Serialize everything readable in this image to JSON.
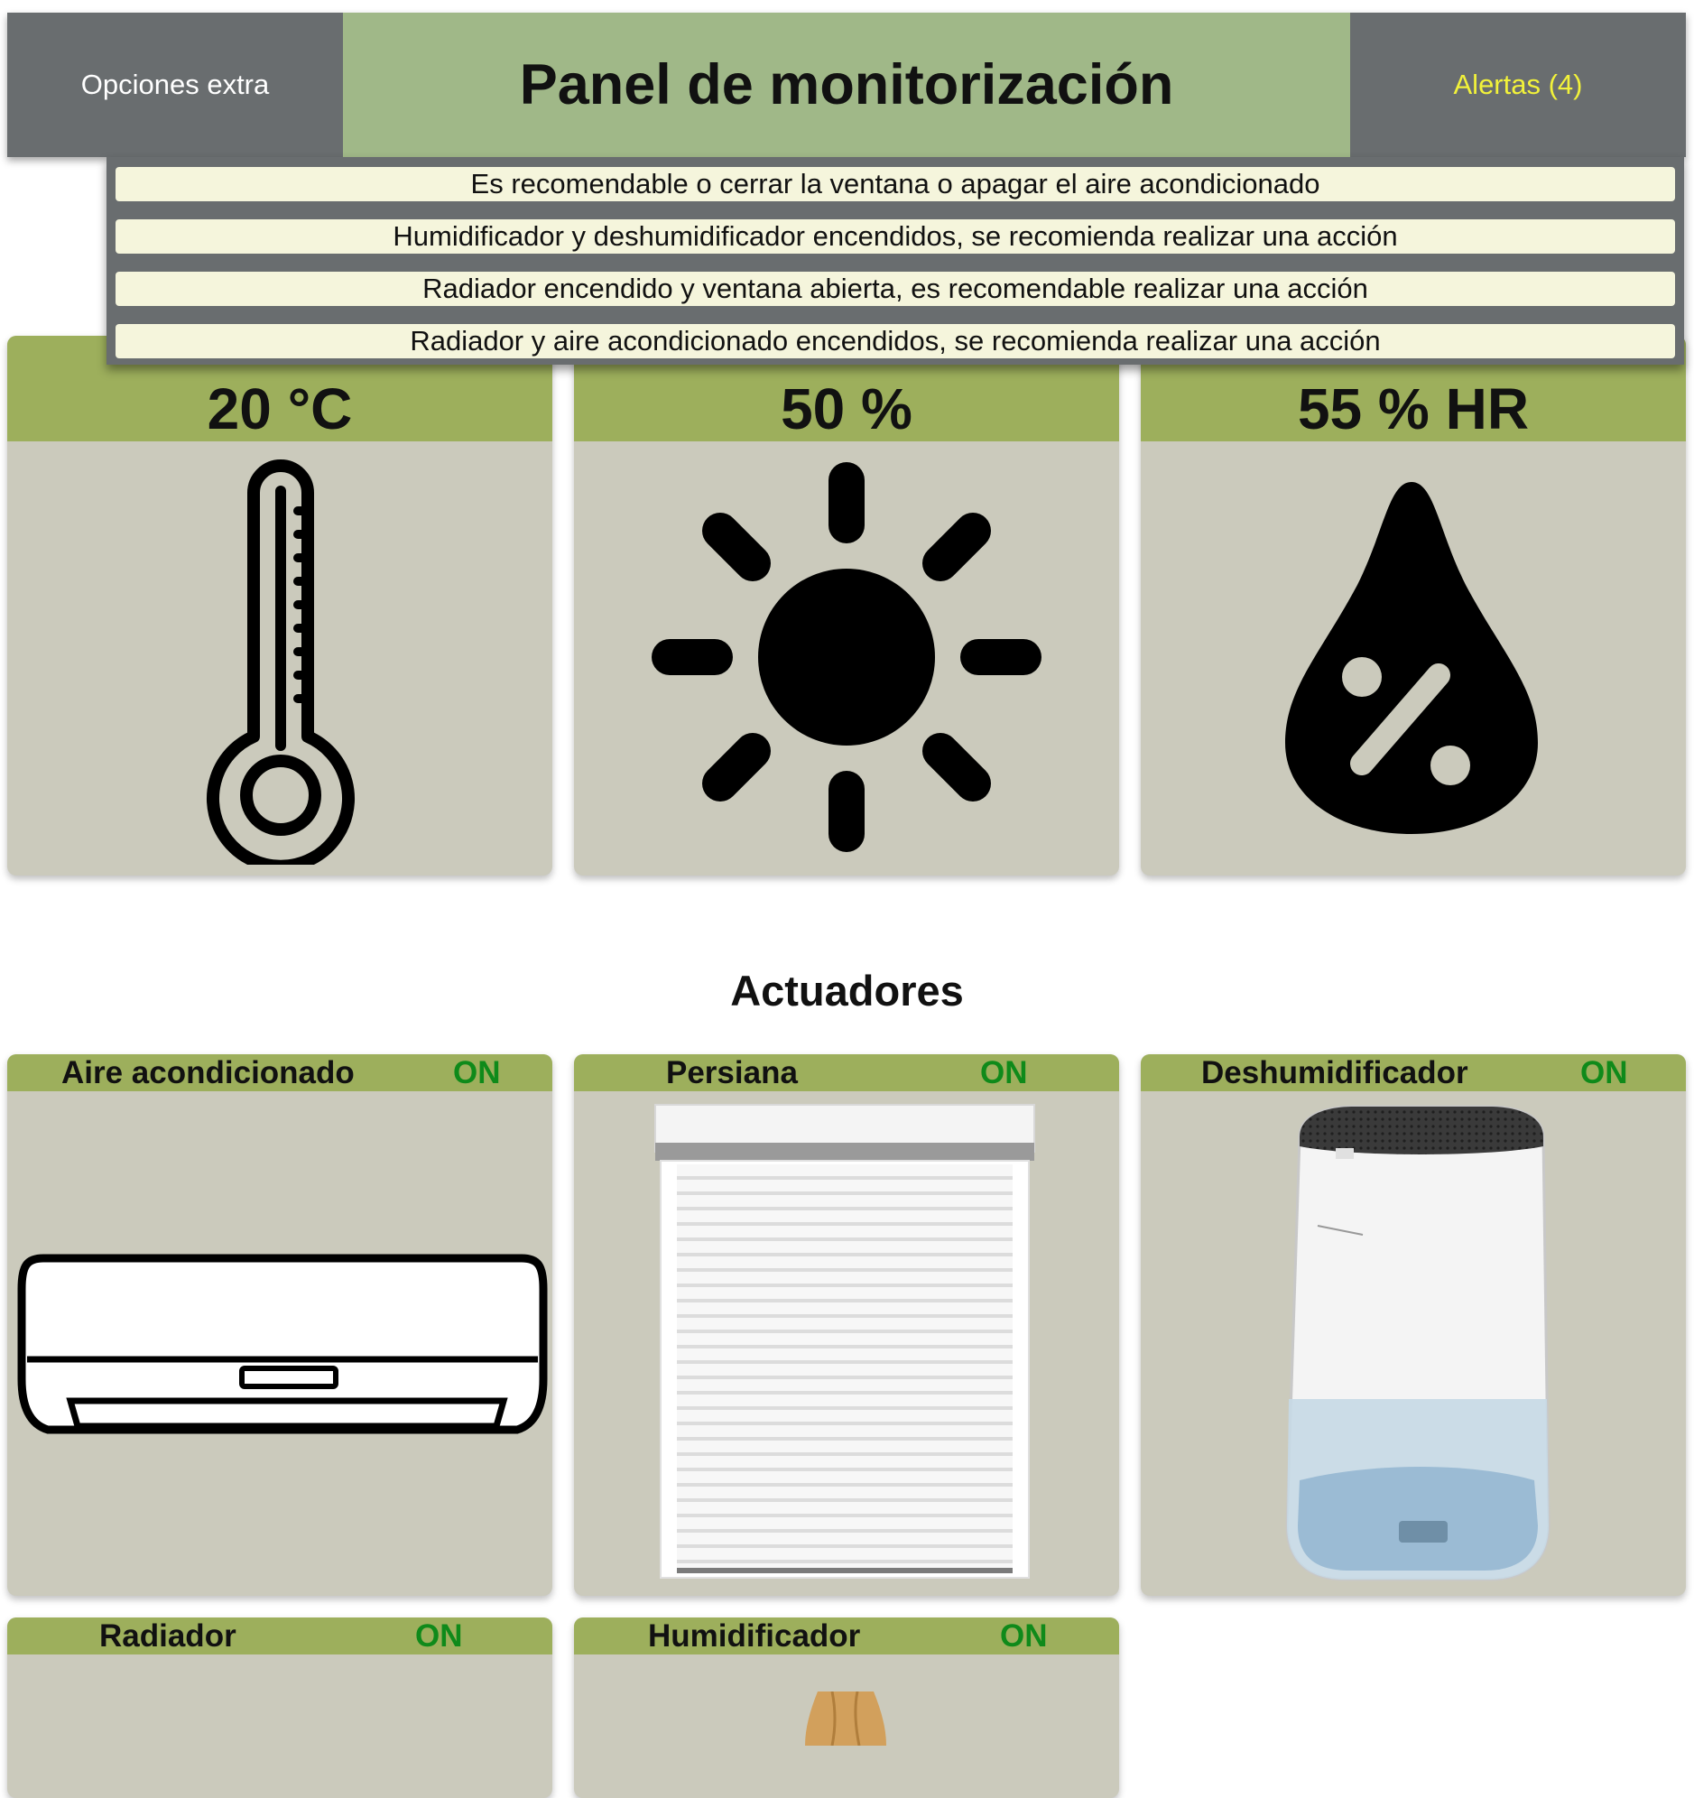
{
  "header": {
    "left_label": "Opciones extra",
    "title": "Panel de monitorización",
    "alerts_label": "Alertas (4)",
    "alerts_color": "#f2f23a"
  },
  "alerts": [
    "Es recomendable o cerrar la ventana o apagar el aire acondicionado",
    "Humidificador y deshumidificador encendidos, se recomienda realizar una acción",
    "Radiador encendido y ventana abierta, es recomendable realizar una acción",
    "Radiador y aire acondicionado encendidos, se recomienda realizar una acción"
  ],
  "sensors": [
    {
      "value": "20 °C",
      "icon": "thermometer-icon"
    },
    {
      "value": "50 %",
      "icon": "sun-icon"
    },
    {
      "value": "55 % HR",
      "icon": "humidity-drop-icon"
    }
  ],
  "actuators_title": "Actuadores",
  "actuators": [
    {
      "name": "Aire acondicionado",
      "state": "ON",
      "icon": "air-conditioner-icon"
    },
    {
      "name": "Persiana",
      "state": "ON",
      "icon": "roller-shutter-icon"
    },
    {
      "name": "Deshumidificador",
      "state": "ON",
      "icon": "dehumidifier-icon"
    },
    {
      "name": "Radiador",
      "state": "ON",
      "icon": "radiator-icon"
    },
    {
      "name": "Humidificador",
      "state": "ON",
      "icon": "humidifier-icon"
    }
  ],
  "colors": {
    "header_side": "#696d6f",
    "header_center": "#a0b888",
    "card_body": "#cbcabc",
    "card_head": "#9daf5c",
    "alert_item": "#f5f5dc",
    "state_on": "#0f8a1a"
  }
}
